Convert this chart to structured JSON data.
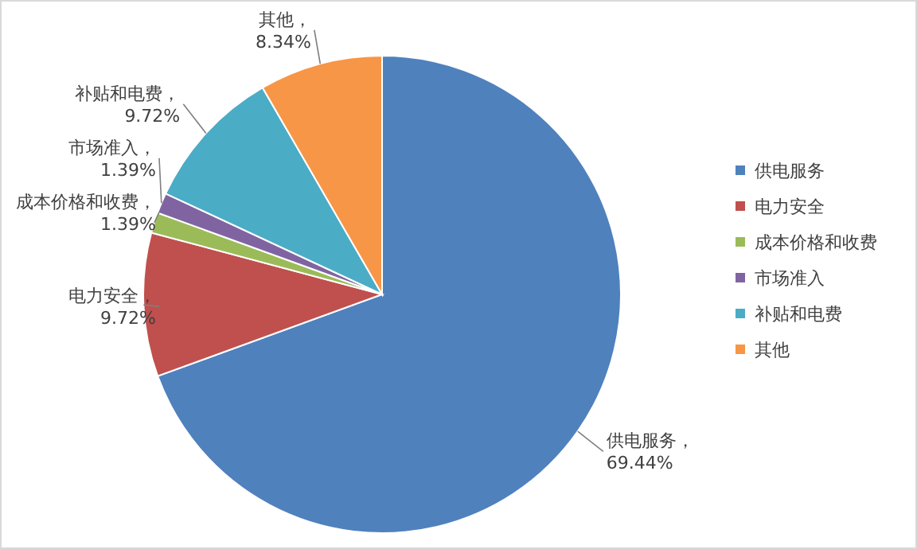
{
  "chart_data": {
    "type": "pie",
    "categories": [
      "供电服务",
      "电力安全",
      "成本价格和收费",
      "市场准入",
      "补贴和电费",
      "其他"
    ],
    "values": [
      69.44,
      9.72,
      1.39,
      1.39,
      9.72,
      8.34
    ],
    "colors": [
      "#4f81bd",
      "#c0504d",
      "#9bbb59",
      "#8064a2",
      "#4bacc6",
      "#f79646"
    ],
    "value_labels": [
      "供电服务，\n69.44%",
      "电力安全，\n9.72%",
      "成本价格和收费，\n1.39%",
      "市场准入，\n1.39%",
      "补贴和电费，\n9.72%",
      "其他，\n8.34%"
    ],
    "legend": "right"
  }
}
